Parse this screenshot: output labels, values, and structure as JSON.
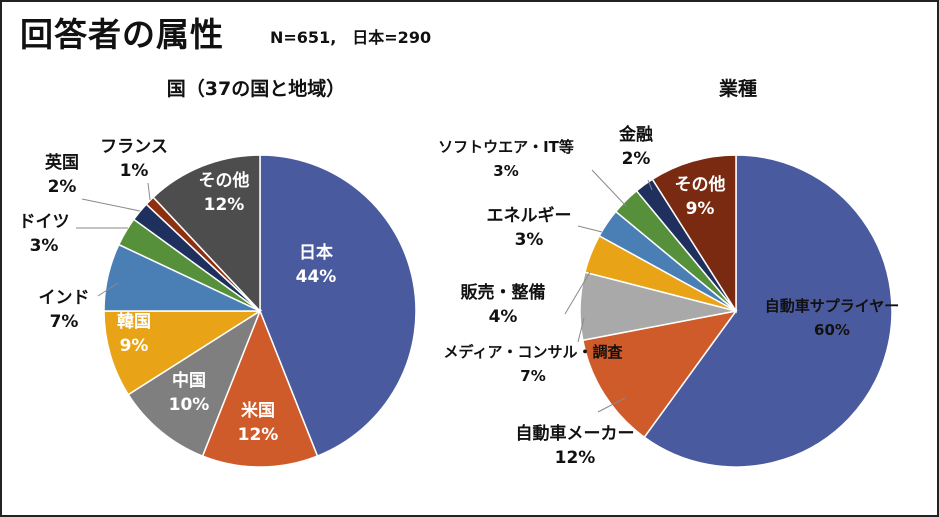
{
  "header": {
    "title": "回答者の属性",
    "subtitle": "N=651,　日本=290"
  },
  "chart_data": [
    {
      "type": "pie",
      "title": "国（37の国と地域）",
      "slices": [
        {
          "name": "日本",
          "value": 44,
          "label": "44%",
          "color": "#4a5a9e"
        },
        {
          "name": "米国",
          "value": 12,
          "label": "12%",
          "color": "#d05b2a"
        },
        {
          "name": "中国",
          "value": 10,
          "label": "10%",
          "color": "#7f7f7f"
        },
        {
          "name": "韓国",
          "value": 9,
          "label": "9%",
          "color": "#e8a317"
        },
        {
          "name": "インド",
          "value": 7,
          "label": "7%",
          "color": "#4a7fb6"
        },
        {
          "name": "ドイツ",
          "value": 3,
          "label": "3%",
          "color": "#56903a"
        },
        {
          "name": "英国",
          "value": 2,
          "label": "2%",
          "color": "#1f2f5e"
        },
        {
          "name": "フランス",
          "value": 1,
          "label": "1%",
          "color": "#8e2f10"
        },
        {
          "name": "その他",
          "value": 12,
          "label": "12%",
          "color": "#4d4d4d"
        }
      ]
    },
    {
      "type": "pie",
      "title": "業種",
      "slices": [
        {
          "name": "自動車サプライヤー",
          "value": 60,
          "label": "60%",
          "color": "#4a5a9e"
        },
        {
          "name": "自動車メーカー",
          "value": 12,
          "label": "12%",
          "color": "#d05b2a"
        },
        {
          "name": "メディア・コンサル・調査",
          "value": 7,
          "label": "7%",
          "color": "#a9a9a9"
        },
        {
          "name": "販売・整備",
          "value": 4,
          "label": "4%",
          "color": "#e8a317"
        },
        {
          "name": "エネルギー",
          "value": 3,
          "label": "3%",
          "color": "#4a7fb6"
        },
        {
          "name": "ソフトウエア・IT等",
          "value": 3,
          "label": "3%",
          "color": "#56903a"
        },
        {
          "name": "金融",
          "value": 2,
          "label": "2%",
          "color": "#1f2f5e"
        },
        {
          "name": "その他",
          "value": 9,
          "label": "9%",
          "color": "#7a2a10"
        }
      ]
    }
  ]
}
